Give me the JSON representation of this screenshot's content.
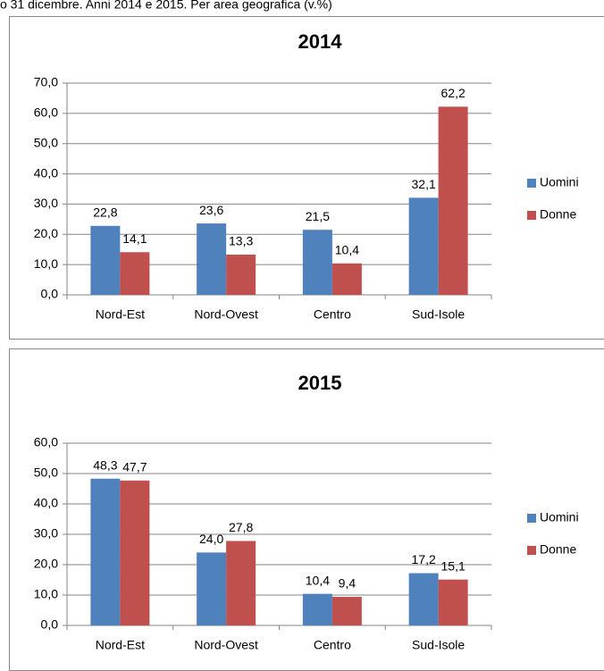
{
  "header": {
    "text": "o 31 dicembre. Anni 2014 e 2015. Per area geografica (v.%)"
  },
  "chart_data": [
    {
      "type": "bar",
      "title": "2014",
      "categories": [
        "Nord-Est",
        "Nord-Ovest",
        "Centro",
        "Sud-Isole"
      ],
      "series": [
        {
          "name": "Uomini",
          "color": "#4f81bd",
          "values": [
            22.8,
            23.6,
            21.5,
            32.1
          ],
          "value_labels": [
            "22,8",
            "23,6",
            "21,5",
            "32,1"
          ]
        },
        {
          "name": "Donne",
          "color": "#c0504d",
          "values": [
            14.1,
            13.3,
            10.4,
            62.2
          ],
          "value_labels": [
            "14,1",
            "13,3",
            "10,4",
            "62,2"
          ]
        }
      ],
      "ylim": [
        0,
        70
      ],
      "yticks": [
        {
          "value": 0,
          "label": "0,0"
        },
        {
          "value": 10,
          "label": "10,0"
        },
        {
          "value": 20,
          "label": "20,0"
        },
        {
          "value": 30,
          "label": "30,0"
        },
        {
          "value": 40,
          "label": "40,0"
        },
        {
          "value": 50,
          "label": "50,0"
        },
        {
          "value": 60,
          "label": "60,0"
        },
        {
          "value": 70,
          "label": "70,0"
        }
      ],
      "grid": true,
      "legend": "right"
    },
    {
      "type": "bar",
      "title": "2015",
      "categories": [
        "Nord-Est",
        "Nord-Ovest",
        "Centro",
        "Sud-Isole"
      ],
      "series": [
        {
          "name": "Uomini",
          "color": "#4f81bd",
          "values": [
            48.3,
            24.0,
            10.4,
            17.2
          ],
          "value_labels": [
            "48,3",
            "24,0",
            "10,4",
            "17,2"
          ]
        },
        {
          "name": "Donne",
          "color": "#c0504d",
          "values": [
            47.7,
            27.8,
            9.4,
            15.1
          ],
          "value_labels": [
            "47,7",
            "27,8",
            "9,4",
            "15,1"
          ]
        }
      ],
      "ylim": [
        0,
        60
      ],
      "yticks": [
        {
          "value": 0,
          "label": "0,0"
        },
        {
          "value": 10,
          "label": "10,0"
        },
        {
          "value": 20,
          "label": "20,0"
        },
        {
          "value": 30,
          "label": "30,0"
        },
        {
          "value": 40,
          "label": "40,0"
        },
        {
          "value": 50,
          "label": "50,0"
        },
        {
          "value": 60,
          "label": "60,0"
        }
      ],
      "grid": true,
      "legend": "right"
    }
  ]
}
